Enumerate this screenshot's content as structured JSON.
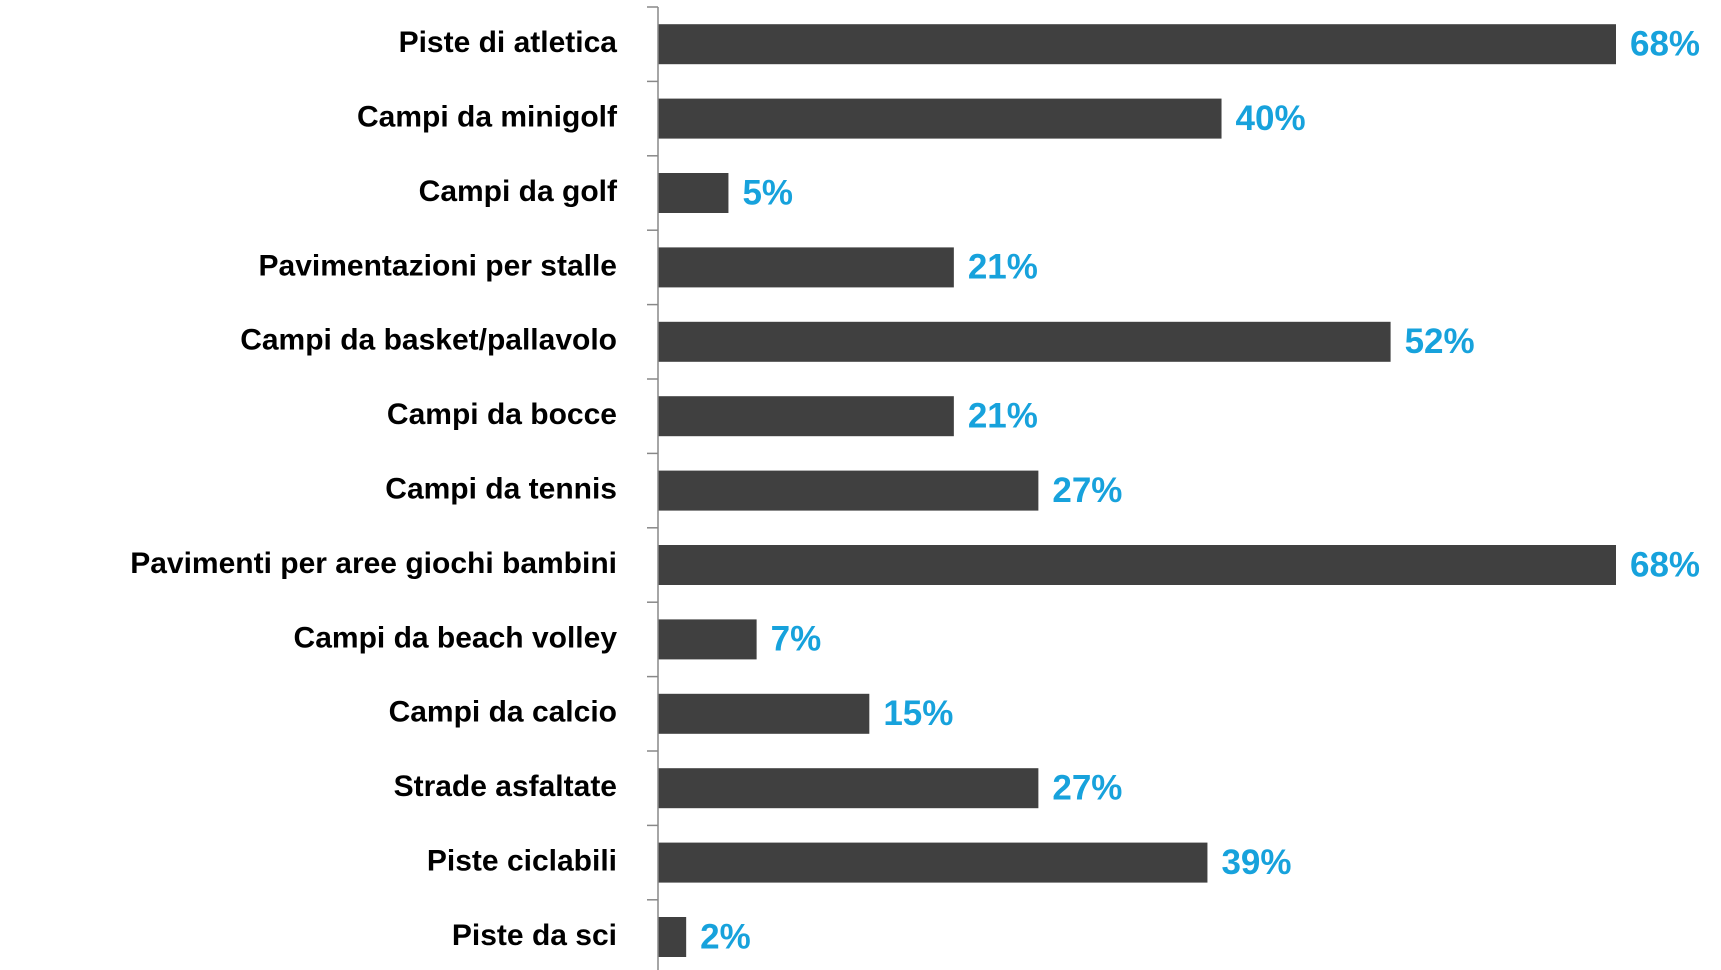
{
  "chart_data": {
    "type": "bar",
    "orientation": "horizontal",
    "categories": [
      "Piste di atletica",
      "Campi da minigolf",
      "Campi da golf",
      "Pavimentazioni per stalle",
      "Campi da basket/pallavolo",
      "Campi da bocce",
      "Campi da tennis",
      "Pavimenti per aree giochi bambini",
      "Campi da beach volley",
      "Campi da calcio",
      "Strade asfaltate",
      "Piste ciclabili",
      "Piste da sci"
    ],
    "values": [
      68,
      40,
      5,
      21,
      52,
      21,
      27,
      68,
      7,
      15,
      27,
      39,
      2
    ],
    "value_labels": [
      "68%",
      "40%",
      "5%",
      "21%",
      "52%",
      "21%",
      "27%",
      "68%",
      "7%",
      "15%",
      "27%",
      "39%",
      "2%"
    ],
    "color": "#404040",
    "label_color": "#17a2dc"
  }
}
